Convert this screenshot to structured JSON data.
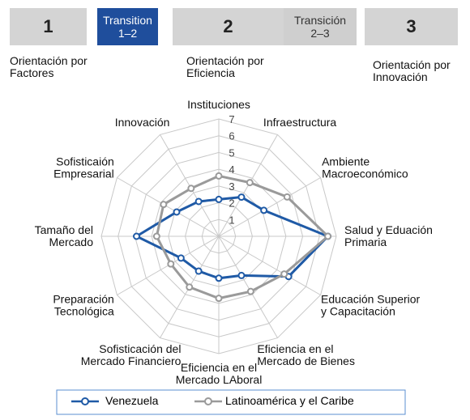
{
  "header": {
    "stages": [
      {
        "label": "1"
      },
      {
        "label": "Transition\n1–2"
      },
      {
        "label": "2"
      },
      {
        "label": "Transición\n2–3"
      },
      {
        "label": "3"
      }
    ],
    "orientations": [
      "Orientación por\nFactores",
      "Orientación por\nEficiencia",
      "Orientación por\nInnovación"
    ]
  },
  "chart_data": {
    "type": "radar",
    "categories": [
      "Instituciones",
      "Infraestructura",
      "Ambiente\nMacroeconómico",
      "Salud y Eduación\nPrimaria",
      "Educación Superior\ny Capacitación",
      "Eficiencia en el\nMercado de Bienes",
      "Eficiencia en el\nMercado LAboral",
      "Sofisticación del\nMercado Financiero",
      "Preparación\nTecnológica",
      "Tamaño del\nMercado",
      "Sofisticaión\nEmpresarial",
      "Innovación"
    ],
    "series": [
      {
        "name": "Venezuela",
        "color": "#1f5aa6",
        "values": [
          2.2,
          2.7,
          3.1,
          6.5,
          4.8,
          2.7,
          2.5,
          2.4,
          2.6,
          4.9,
          2.9,
          2.4
        ]
      },
      {
        "name": "Latinoamérica y el Caribe",
        "color": "#9a9a9a",
        "values": [
          3.6,
          3.7,
          4.7,
          6.5,
          4.5,
          3.8,
          3.7,
          3.5,
          3.3,
          3.7,
          3.8,
          3.3
        ]
      }
    ],
    "ylim": [
      0,
      7
    ],
    "yticks": [
      1,
      2,
      3,
      4,
      5,
      6,
      7
    ],
    "grid": true,
    "legend": "bottom"
  }
}
